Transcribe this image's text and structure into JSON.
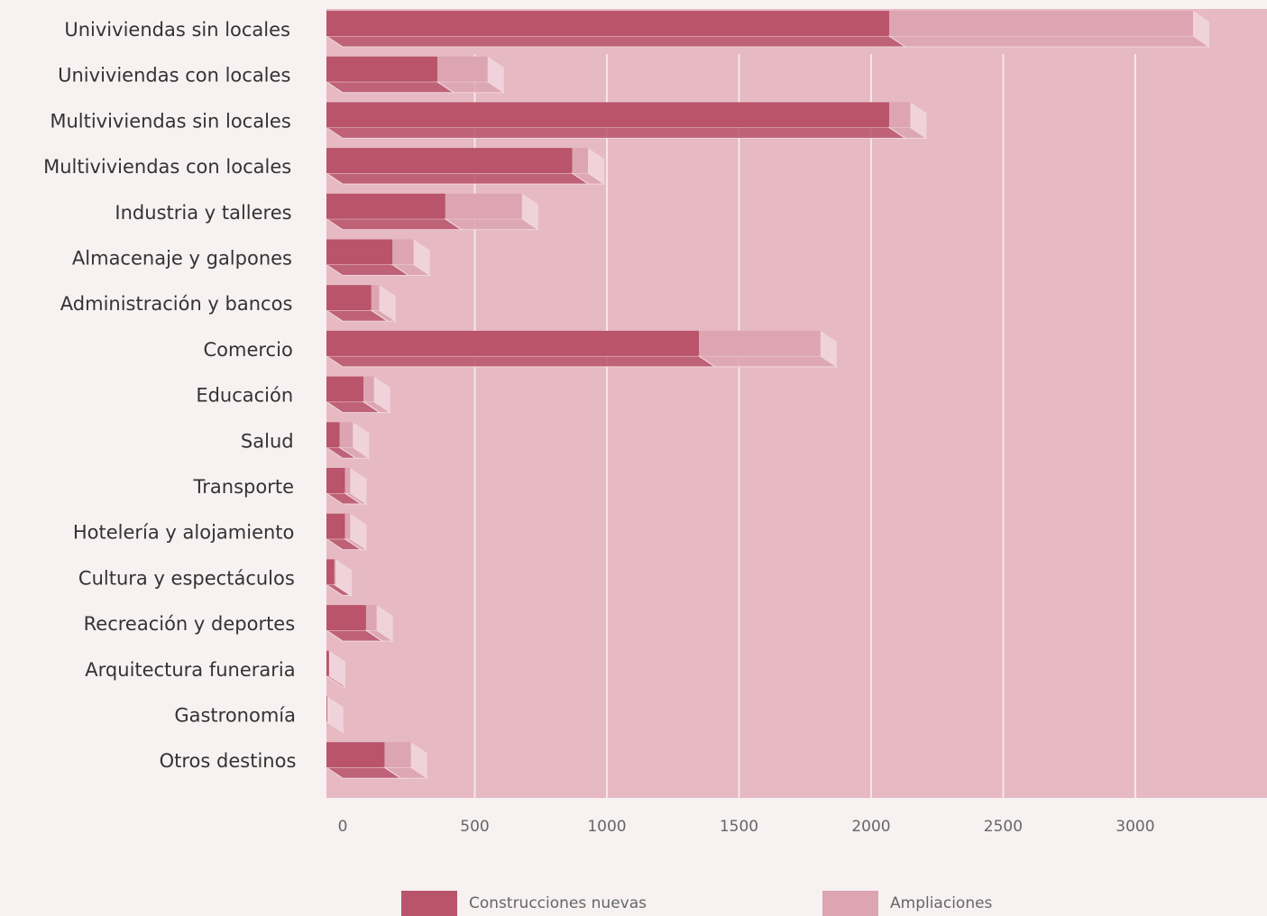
{
  "chart_data": {
    "type": "hbar-stacked",
    "categories": [
      "Univiviendas sin locales",
      "Univiviendas con locales",
      "Multiviviendas sin locales",
      "Multiviviendas con locales",
      "Industria y talleres",
      "Almacenaje y galpones",
      "Administración y bancos",
      "Comercio",
      "Educación",
      "Salud",
      "Transporte",
      "Hotelería y alojamiento",
      "Cultura y espectáculos",
      "Recreación y deportes",
      "Arquitectura funeraria",
      "Gastronomía",
      "Otros destinos"
    ],
    "series": [
      {
        "name": "Construcciones nuevas",
        "color": "#b9546a",
        "values": [
          2130,
          420,
          2130,
          930,
          450,
          250,
          170,
          1410,
          140,
          50,
          70,
          70,
          30,
          150,
          10,
          3,
          220
        ]
      },
      {
        "name": "Ampliaciones",
        "color": "#dca5b1",
        "values": [
          1150,
          190,
          80,
          60,
          290,
          80,
          30,
          460,
          40,
          50,
          20,
          20,
          5,
          40,
          0,
          0,
          100
        ]
      }
    ],
    "xlim": [
      0,
      3560
    ],
    "xticks": [
      0,
      500,
      1000,
      1500,
      2000,
      2500,
      3000
    ],
    "grid": true,
    "legend": "bottom"
  }
}
